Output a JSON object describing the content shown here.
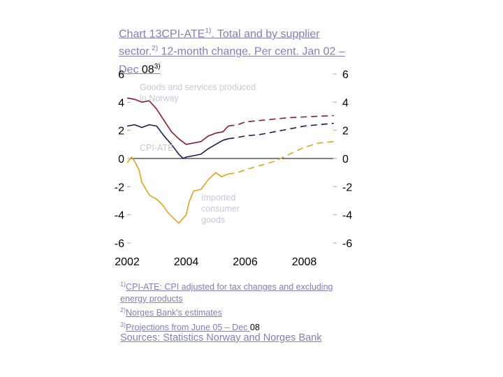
{
  "title": {
    "chart_no": "Chart 13",
    "p1": "CPI-ATE",
    "sup1": "1)",
    "p2": ". Total and by supplier sector.",
    "sup2": "2)",
    "p3": " 12-month change. Per cent. Jan 02 – Dec ",
    "p4": "08",
    "sup3": "3)"
  },
  "notes": {
    "n1_marker": "1)",
    "n1_text": "CPI-ATE: CPI adjusted for tax changes and excluding energy products",
    "n2_marker": "2)",
    "n2_text": "Norges Bank's estimates",
    "n3_marker": "3)",
    "n3_text_a": "Projections from June 05 – Dec ",
    "n3_text_b": "08"
  },
  "sources": "Sources: Statistics Norway and Norges Bank",
  "chart_data": {
    "type": "line",
    "ylim": [
      -6,
      6
    ],
    "xlim": [
      2002,
      2009.1
    ],
    "yticks": [
      "6",
      "4",
      "2",
      "0",
      "-2",
      "-4",
      "-6"
    ],
    "xticks": [
      "2002",
      "2004",
      "2006",
      "2008"
    ],
    "annotations": {
      "goods": "Goods and services produced in Norway",
      "cpiate": "CPI-ATE",
      "imported": "Imported consumer goods"
    },
    "colors": {
      "goods": "#8b1a2e",
      "cpiate": "#1a1a5e",
      "imported": "#e0a21a"
    },
    "series": [
      {
        "key": "goods",
        "x": [
          2002.0,
          2002.25,
          2002.5,
          2002.75,
          2003.0,
          2003.25,
          2003.5,
          2003.75,
          2004.0,
          2004.25,
          2004.5,
          2004.75,
          2005.0,
          2005.25,
          2005.42
        ],
        "y": [
          4.3,
          4.2,
          4.0,
          4.1,
          3.5,
          2.7,
          1.9,
          1.4,
          1.0,
          1.1,
          1.2,
          1.6,
          1.8,
          1.9,
          2.3
        ],
        "proj_x": [
          2005.42,
          2005.75,
          2006.0,
          2006.5,
          2007.0,
          2007.5,
          2008.0,
          2008.5,
          2009.0
        ],
        "proj_y": [
          2.3,
          2.4,
          2.6,
          2.7,
          2.8,
          2.9,
          2.95,
          3.0,
          3.05
        ]
      },
      {
        "key": "cpiate",
        "x": [
          2002.0,
          2002.25,
          2002.5,
          2002.75,
          2003.0,
          2003.25,
          2003.5,
          2003.75,
          2003.9,
          2004.0,
          2004.25,
          2004.5,
          2004.75,
          2005.0,
          2005.25,
          2005.42
        ],
        "y": [
          2.3,
          2.4,
          2.2,
          2.4,
          2.3,
          1.6,
          1.0,
          0.3,
          0.0,
          0.1,
          0.2,
          0.3,
          0.7,
          1.0,
          1.3,
          1.4
        ],
        "proj_x": [
          2005.42,
          2005.75,
          2006.0,
          2006.5,
          2007.0,
          2007.5,
          2008.0,
          2008.5,
          2009.0
        ],
        "proj_y": [
          1.4,
          1.5,
          1.6,
          1.7,
          1.9,
          2.1,
          2.3,
          2.4,
          2.5
        ]
      },
      {
        "key": "imported",
        "x": [
          2002.0,
          2002.15,
          2002.25,
          2002.4,
          2002.5,
          2002.75,
          2003.0,
          2003.2,
          2003.4,
          2003.6,
          2003.75,
          2004.0,
          2004.1,
          2004.25,
          2004.5,
          2004.75,
          2005.0,
          2005.2,
          2005.42
        ],
        "y": [
          -0.3,
          0.1,
          -0.2,
          -0.8,
          -1.7,
          -2.6,
          -2.9,
          -3.3,
          -3.9,
          -4.3,
          -4.6,
          -4.0,
          -3.1,
          -2.3,
          -2.2,
          -1.5,
          -1.0,
          -1.3,
          -1.1
        ],
        "proj_x": [
          2005.42,
          2005.75,
          2006.0,
          2006.5,
          2007.0,
          2007.5,
          2008.0,
          2008.5,
          2009.0
        ],
        "proj_y": [
          -1.1,
          -1.0,
          -0.8,
          -0.5,
          -0.2,
          0.3,
          0.8,
          1.1,
          1.2
        ]
      }
    ]
  }
}
